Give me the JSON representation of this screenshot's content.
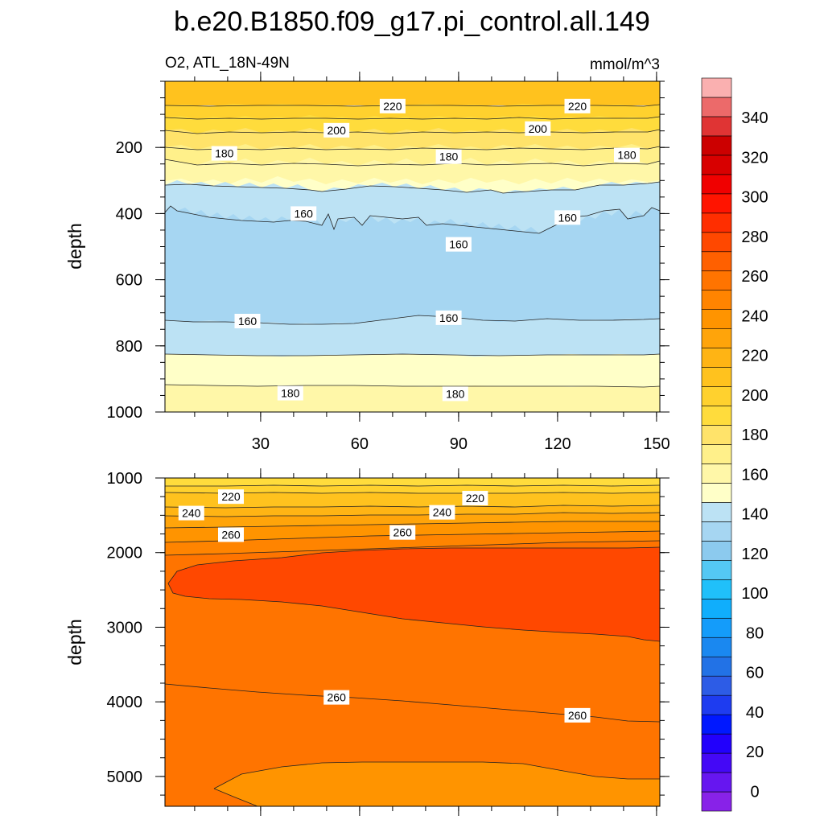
{
  "title": "b.e20.B1850.f09_g17.pi_control.all.149",
  "subtitle_left": "O2, ATL_18N-49N",
  "subtitle_right": "mmol/m^3",
  "chart_data": [
    {
      "type": "contour",
      "panel": "upper",
      "variable": "O2",
      "region": "ATL_18N-49N",
      "units": "mmol/m^3",
      "ylabel": "depth",
      "xlabel": "",
      "xlim": [
        1,
        151
      ],
      "ylim": [
        1000,
        0
      ],
      "xticks": [
        30,
        60,
        90,
        120,
        150
      ],
      "yticks": [
        200,
        400,
        600,
        800,
        1000
      ],
      "bands": [
        {
          "from_depth": 0,
          "to_depth": 70,
          "range": [
            220,
            230
          ]
        },
        {
          "from_depth": 70,
          "to_depth": 110,
          "range": [
            210,
            220
          ]
        },
        {
          "from_depth": 110,
          "to_depth": 145,
          "range": [
            200,
            210
          ]
        },
        {
          "from_depth": 145,
          "to_depth": 190,
          "range": [
            190,
            200
          ]
        },
        {
          "from_depth": 190,
          "to_depth": 255,
          "range": [
            180,
            190
          ]
        },
        {
          "from_depth": 255,
          "to_depth": 305,
          "range": [
            170,
            180
          ]
        },
        {
          "from_depth": 305,
          "to_depth": 400,
          "range": [
            160,
            170
          ]
        },
        {
          "from_depth": 400,
          "to_depth": 720,
          "range": [
            150,
            160
          ]
        },
        {
          "from_depth": 720,
          "to_depth": 835,
          "range": [
            160,
            170
          ]
        },
        {
          "from_depth": 835,
          "to_depth": 925,
          "range": [
            170,
            180
          ]
        },
        {
          "from_depth": 925,
          "to_depth": 1000,
          "range": [
            180,
            190
          ]
        }
      ],
      "contour_labels": [
        {
          "x": 70,
          "depth": 75,
          "label": "220"
        },
        {
          "x": 126,
          "depth": 75,
          "label": "220"
        },
        {
          "x": 53,
          "depth": 148,
          "label": "200"
        },
        {
          "x": 114,
          "depth": 143,
          "label": "200"
        },
        {
          "x": 19,
          "depth": 218,
          "label": "180"
        },
        {
          "x": 87,
          "depth": 228,
          "label": "180"
        },
        {
          "x": 141,
          "depth": 223,
          "label": "180"
        },
        {
          "x": 43,
          "depth": 400,
          "label": "160"
        },
        {
          "x": 90,
          "depth": 493,
          "label": "160"
        },
        {
          "x": 123,
          "depth": 412,
          "label": "160"
        },
        {
          "x": 26,
          "depth": 725,
          "label": "160"
        },
        {
          "x": 87,
          "depth": 715,
          "label": "160"
        },
        {
          "x": 39,
          "depth": 943,
          "label": "180"
        },
        {
          "x": 89,
          "depth": 945,
          "label": "180"
        }
      ]
    },
    {
      "type": "contour",
      "panel": "lower",
      "variable": "O2",
      "region": "ATL_18N-49N",
      "units": "mmol/m^3",
      "ylabel": "depth",
      "xlabel": "",
      "xlim": [
        1,
        151
      ],
      "ylim": [
        5400,
        1000
      ],
      "xticks": [
        30,
        60,
        90,
        120,
        150
      ],
      "yticks": [
        1000,
        2000,
        3000,
        4000,
        5000
      ],
      "bands": [
        {
          "from_depth": 1000,
          "to_depth": 1100,
          "range": [
            200,
            210
          ]
        },
        {
          "from_depth": 1100,
          "to_depth": 1200,
          "range": [
            210,
            220
          ]
        },
        {
          "from_depth": 1200,
          "to_depth": 1400,
          "range": [
            220,
            230
          ]
        },
        {
          "from_depth": 1400,
          "to_depth": 1650,
          "range": [
            230,
            240
          ]
        },
        {
          "from_depth": 1650,
          "to_depth": 1850,
          "range": [
            240,
            250
          ]
        },
        {
          "from_depth": 1850,
          "to_depth": 5400,
          "range": [
            250,
            260
          ]
        },
        {
          "region": "core",
          "depth_center": 2500,
          "range": [
            260,
            270
          ]
        },
        {
          "region": "bottom",
          "depth_center": 5150,
          "range": [
            250,
            260
          ]
        }
      ],
      "contour_labels": [
        {
          "x": 21,
          "depth": 1250,
          "label": "220"
        },
        {
          "x": 95,
          "depth": 1270,
          "label": "220"
        },
        {
          "x": 9,
          "depth": 1470,
          "label": "240"
        },
        {
          "x": 85,
          "depth": 1460,
          "label": "240"
        },
        {
          "x": 21,
          "depth": 1760,
          "label": "260"
        },
        {
          "x": 73,
          "depth": 1730,
          "label": "260"
        },
        {
          "x": 53,
          "depth": 3940,
          "label": "260"
        },
        {
          "x": 126,
          "depth": 4180,
          "label": "260"
        }
      ]
    }
  ],
  "colorbar": {
    "tick_labels": [
      "0",
      "20",
      "40",
      "60",
      "80",
      "100",
      "120",
      "140",
      "160",
      "180",
      "200",
      "220",
      "240",
      "260",
      "280",
      "300",
      "320",
      "340"
    ],
    "min": -10,
    "max": 360,
    "step": 10,
    "colors": [
      "#8822e8",
      "#6616f0",
      "#4408f6",
      "#2200fc",
      "#0018ff",
      "#1e3cf0",
      "#2d5ce6",
      "#2272e6",
      "#1a88f0",
      "#149cfa",
      "#10aefc",
      "#20c0fa",
      "#54c8f4",
      "#8ccaee",
      "#a6d6f2",
      "#bce2f4",
      "#ffffc8",
      "#fff7a8",
      "#fff08a",
      "#ffe36a",
      "#ffdc3c",
      "#ffd12e",
      "#ffc21e",
      "#ffb414",
      "#ffa40a",
      "#ff9400",
      "#ff8400",
      "#ff7400",
      "#ff6000",
      "#ff4800",
      "#ff2e00",
      "#ff1400",
      "#f00000",
      "#d80000",
      "#cc0000",
      "#e03434",
      "#ec6a6a",
      "#fab0b0"
    ]
  }
}
